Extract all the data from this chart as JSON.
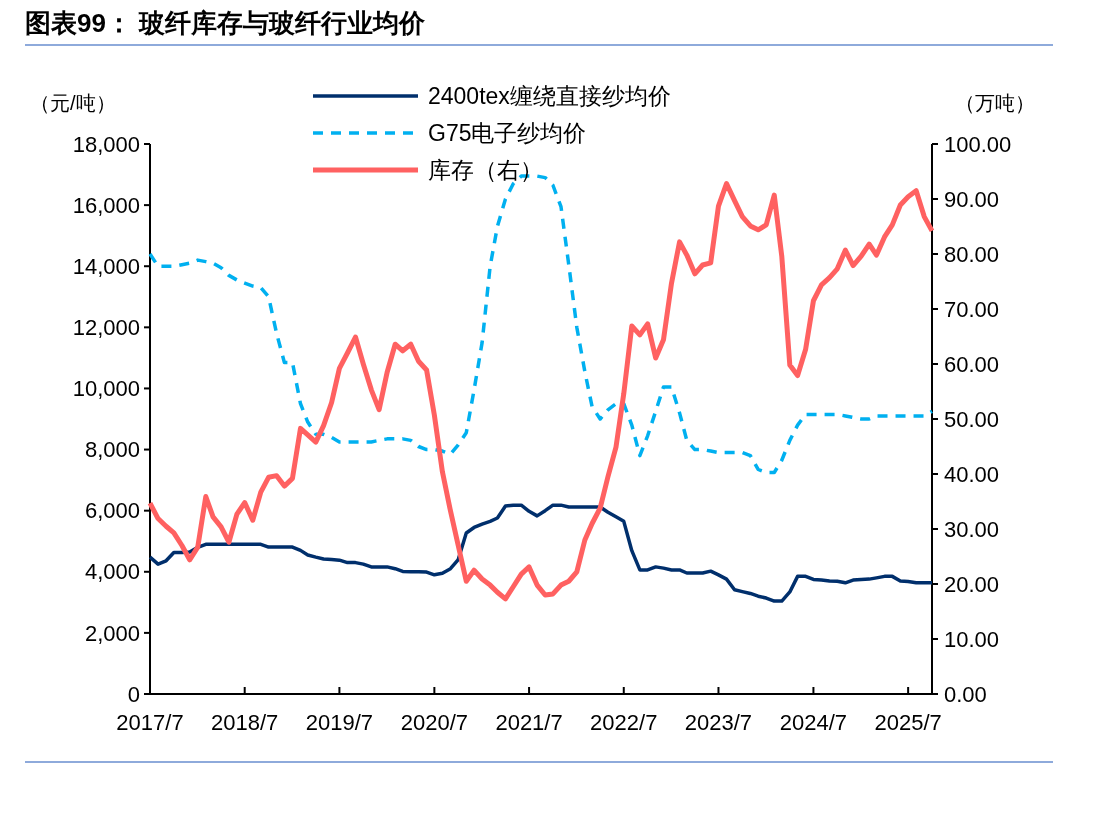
{
  "chart_data": {
    "type": "line",
    "title": "图表99： 玻纤库存与玻纤行业均价",
    "ylabel": "（元/吨）",
    "y2label": "（万吨）",
    "x": [
      "2017-07",
      "2017-08",
      "2017-09",
      "2017-10",
      "2017-11",
      "2017-12",
      "2018-01",
      "2018-02",
      "2018-03",
      "2018-04",
      "2018-05",
      "2018-06",
      "2018-07",
      "2018-08",
      "2018-09",
      "2018-10",
      "2018-11",
      "2018-12",
      "2019-01",
      "2019-02",
      "2019-03",
      "2019-04",
      "2019-05",
      "2019-06",
      "2019-07",
      "2019-08",
      "2019-09",
      "2019-10",
      "2019-11",
      "2019-12",
      "2020-01",
      "2020-02",
      "2020-03",
      "2020-04",
      "2020-05",
      "2020-06",
      "2020-07",
      "2020-08",
      "2020-09",
      "2020-10",
      "2020-11",
      "2020-12",
      "2021-01",
      "2021-02",
      "2021-03",
      "2021-04",
      "2021-05",
      "2021-06",
      "2021-07",
      "2021-08",
      "2021-09",
      "2021-10",
      "2021-11",
      "2021-12",
      "2022-01",
      "2022-02",
      "2022-03",
      "2022-04",
      "2022-05",
      "2022-06",
      "2022-07",
      "2022-08",
      "2022-09",
      "2022-10",
      "2022-11",
      "2022-12",
      "2023-01",
      "2023-02",
      "2023-03",
      "2023-04",
      "2023-05",
      "2023-06",
      "2023-07",
      "2023-08",
      "2023-09",
      "2023-10",
      "2023-11",
      "2023-12",
      "2024-01",
      "2024-02",
      "2024-03",
      "2024-04",
      "2024-05",
      "2024-06",
      "2024-07",
      "2024-08",
      "2024-09",
      "2024-10",
      "2024-11",
      "2024-12",
      "2025-01",
      "2025-02",
      "2025-03",
      "2025-04",
      "2025-05",
      "2025-06",
      "2025-07",
      "2025-08",
      "2025-09",
      "2025-10"
    ],
    "series": [
      {
        "name": "2400tex缠绕直接纱均价",
        "color": "#002f6c",
        "line_style": "solid",
        "values": [
          4480,
          4250,
          4360,
          4630,
          4630,
          4650,
          4800,
          4900,
          4900,
          4900,
          4900,
          4900,
          4900,
          4900,
          4900,
          4810,
          4810,
          4810,
          4810,
          4700,
          4550,
          4480,
          4420,
          4400,
          4380,
          4300,
          4300,
          4250,
          4160,
          4160,
          4160,
          4100,
          4010,
          4000,
          4000,
          3990,
          3900,
          3950,
          4100,
          4400,
          5270,
          5450,
          5560,
          5650,
          5760,
          6150,
          6180,
          6180,
          5980,
          5830,
          6000,
          6180,
          6180,
          6120,
          6120,
          6120,
          6120,
          6120,
          5950,
          5800,
          5650,
          4690,
          4060,
          4060,
          4160,
          4120,
          4060,
          4060,
          3960,
          3960,
          3960,
          4020,
          3900,
          3760,
          3410,
          3350,
          3290,
          3200,
          3140,
          3040,
          3040,
          3340,
          3850,
          3850,
          3750,
          3730,
          3700,
          3690,
          3640,
          3730,
          3750,
          3760,
          3800,
          3850,
          3850,
          3700,
          3680,
          3640,
          3640,
          3640
        ]
      },
      {
        "name": "G75电子纱均价",
        "color": "#00b0f0",
        "line_style": "dashed",
        "values": [
          14400,
          14000,
          14000,
          14000,
          14050,
          14100,
          14200,
          14150,
          14100,
          13950,
          13700,
          13550,
          13450,
          13350,
          13300,
          13000,
          11800,
          10850,
          10850,
          9500,
          8900,
          8500,
          8500,
          8400,
          8250,
          8250,
          8250,
          8250,
          8250,
          8300,
          8350,
          8350,
          8350,
          8300,
          8100,
          8000,
          8000,
          7950,
          7850,
          8150,
          8550,
          9950,
          11500,
          14000,
          15300,
          16200,
          16700,
          16950,
          16950,
          16950,
          16900,
          16650,
          15950,
          14050,
          12000,
          10550,
          9400,
          9000,
          9300,
          9500,
          9500,
          8800,
          7800,
          8450,
          9250,
          10050,
          10050,
          9200,
          8300,
          8000,
          8000,
          7950,
          7900,
          7900,
          7900,
          7900,
          7800,
          7350,
          7250,
          7250,
          7650,
          8300,
          8800,
          9150,
          9150,
          9150,
          9150,
          9150,
          9100,
          9050,
          9000,
          9000,
          9100,
          9100,
          9100,
          9100,
          9100,
          9100,
          9100,
          9250
        ]
      },
      {
        "name": "库存（右）",
        "color": "#ff6161",
        "line_style": "solid",
        "axis": "y2",
        "values": [
          34.7,
          31.9,
          30.5,
          29.3,
          27,
          24.4,
          26.7,
          35.9,
          32.2,
          30.4,
          27.6,
          32.7,
          34.8,
          31.6,
          36.7,
          39.4,
          39.7,
          37.8,
          39.2,
          48.3,
          47.1,
          45.8,
          48.8,
          53.0,
          59.2,
          62,
          64.9,
          60,
          55.3,
          51.7,
          58.5,
          63.6,
          62.4,
          63.6,
          60.5,
          58.9,
          50.7,
          40.4,
          33.3,
          27,
          20.5,
          22.5,
          20.9,
          19.8,
          18.5,
          17.3,
          19.5,
          21.8,
          23.1,
          19.8,
          18.0,
          18.2,
          19.8,
          20.5,
          22.2,
          28,
          31,
          33.8,
          39.5,
          44.9,
          54.6,
          66.9,
          65.3,
          67.3,
          61.1,
          64.4,
          74.7,
          82.2,
          79.8,
          76.4,
          78,
          78.4,
          88.7,
          92.8,
          89.7,
          86.8,
          85.1,
          84.4,
          85.3,
          90.7,
          79.6,
          59.8,
          57.9,
          62.7,
          71.5,
          74.4,
          75.7,
          77.3,
          80.7,
          77.9,
          79.6,
          81.8,
          79.8,
          83.1,
          85.3,
          88.9,
          90.4,
          91.5,
          86.8,
          84.2
        ]
      }
    ],
    "xlim": [
      "2017-07",
      "2025-10"
    ],
    "xticks": [
      {
        "value": "2017-07",
        "label": "2017/7"
      },
      {
        "value": "2018-07",
        "label": "2018/7"
      },
      {
        "value": "2019-07",
        "label": "2019/7"
      },
      {
        "value": "2020-07",
        "label": "2020/7"
      },
      {
        "value": "2021-07",
        "label": "2021/7"
      },
      {
        "value": "2022-07",
        "label": "2022/7"
      },
      {
        "value": "2023-07",
        "label": "2023/7"
      },
      {
        "value": "2024-07",
        "label": "2024/7"
      },
      {
        "value": "2025-07",
        "label": "2025/7"
      }
    ],
    "ylim": [
      0,
      18000
    ],
    "yticks": [
      0,
      {
        "value": 2000,
        "label": "2,000"
      },
      {
        "value": 4000,
        "label": "4,000"
      },
      {
        "value": 6000,
        "label": "6,000"
      },
      {
        "value": 8000,
        "label": "8,000"
      },
      {
        "value": 10000,
        "label": "10,000"
      },
      {
        "value": 12000,
        "label": "12,000"
      },
      {
        "value": 14000,
        "label": "14,000"
      },
      {
        "value": 16000,
        "label": "16,000"
      },
      {
        "value": 18000,
        "label": "18,000"
      }
    ],
    "y2lim": [
      0,
      100
    ],
    "y2ticks": [
      {
        "value": 0,
        "label": "0.00"
      },
      {
        "value": 10,
        "label": "10.00"
      },
      {
        "value": 20,
        "label": "20.00"
      },
      {
        "value": 30,
        "label": "30.00"
      },
      {
        "value": 40,
        "label": "40.00"
      },
      {
        "value": 50,
        "label": "50.00"
      },
      {
        "value": 60,
        "label": "60.00"
      },
      {
        "value": 70,
        "label": "70.00"
      },
      {
        "value": 80,
        "label": "80.00"
      },
      {
        "value": 90,
        "label": "90.00"
      },
      {
        "value": 100,
        "label": "100.00"
      }
    ],
    "grid": false,
    "legend": "top",
    "marker": "none"
  }
}
